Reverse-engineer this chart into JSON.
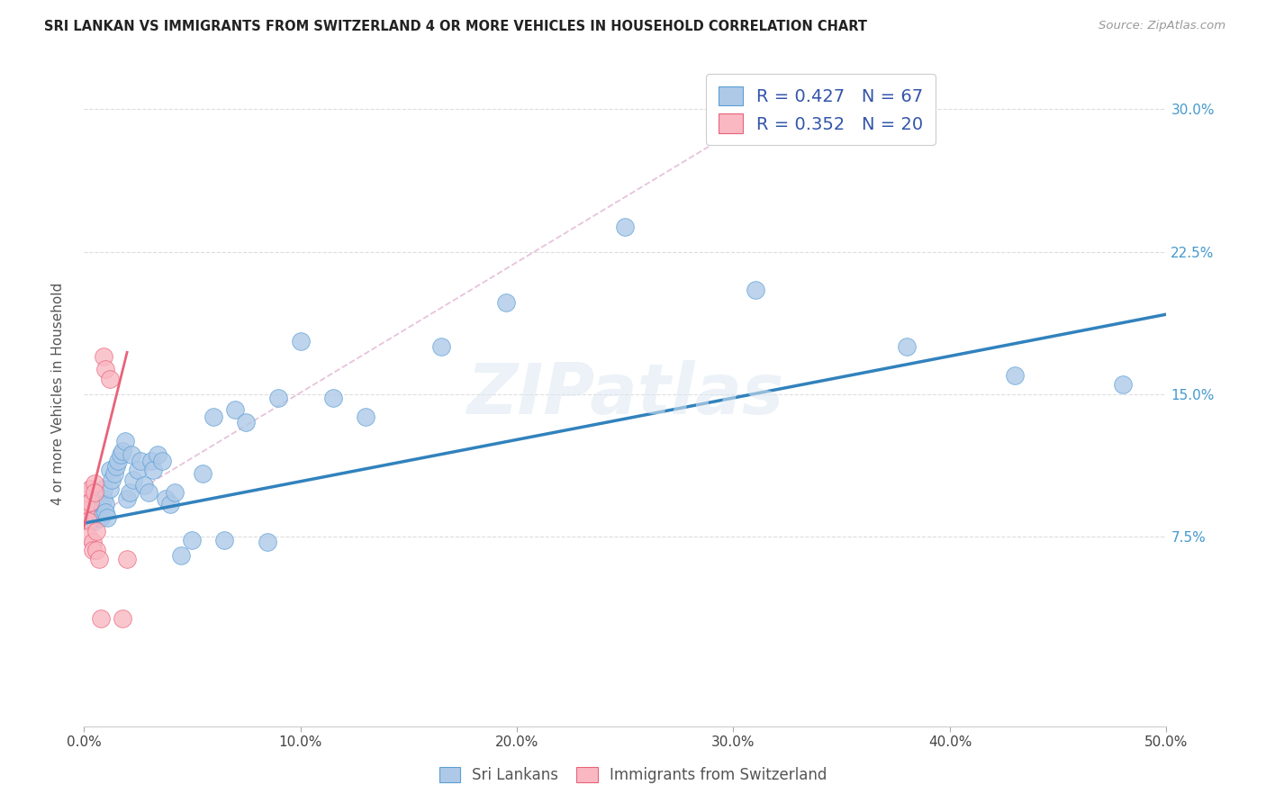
{
  "title": "SRI LANKAN VS IMMIGRANTS FROM SWITZERLAND 4 OR MORE VEHICLES IN HOUSEHOLD CORRELATION CHART",
  "source": "Source: ZipAtlas.com",
  "ylabel": "4 or more Vehicles in Household",
  "xlim": [
    0.0,
    0.5
  ],
  "ylim": [
    -0.025,
    0.325
  ],
  "trendline1_color": "#3182bd",
  "trendline2_color": "#e8637a",
  "sri_lankan_color": "#aec9e8",
  "swiss_imm_color": "#f9b8c2",
  "sri_lankan_edge": "#5a9fd4",
  "swiss_edge": "#e8637a",
  "watermark": "ZIPatlas",
  "background_color": "#ffffff",
  "diag_color": "#ddbbcc",
  "legend1_text": "R = 0.427   N = 67",
  "legend2_text": "R = 0.352   N = 20",
  "legend_label_color": "#3355aa",
  "sri_lankans_x": [
    0.003,
    0.003,
    0.004,
    0.004,
    0.005,
    0.005,
    0.005,
    0.005,
    0.006,
    0.006,
    0.006,
    0.006,
    0.007,
    0.007,
    0.007,
    0.007,
    0.008,
    0.008,
    0.008,
    0.009,
    0.009,
    0.01,
    0.01,
    0.011,
    0.012,
    0.012,
    0.013,
    0.014,
    0.015,
    0.016,
    0.017,
    0.018,
    0.019,
    0.02,
    0.021,
    0.022,
    0.023,
    0.025,
    0.026,
    0.028,
    0.03,
    0.031,
    0.032,
    0.034,
    0.036,
    0.038,
    0.04,
    0.042,
    0.045,
    0.05,
    0.055,
    0.06,
    0.065,
    0.07,
    0.075,
    0.085,
    0.09,
    0.1,
    0.115,
    0.13,
    0.165,
    0.195,
    0.25,
    0.31,
    0.38,
    0.43,
    0.48
  ],
  "sri_lankans_y": [
    0.09,
    0.083,
    0.088,
    0.093,
    0.088,
    0.083,
    0.092,
    0.086,
    0.09,
    0.085,
    0.093,
    0.087,
    0.088,
    0.092,
    0.096,
    0.085,
    0.09,
    0.085,
    0.093,
    0.095,
    0.1,
    0.092,
    0.088,
    0.085,
    0.1,
    0.11,
    0.105,
    0.108,
    0.112,
    0.115,
    0.118,
    0.12,
    0.125,
    0.095,
    0.098,
    0.118,
    0.105,
    0.11,
    0.115,
    0.102,
    0.098,
    0.115,
    0.11,
    0.118,
    0.115,
    0.095,
    0.092,
    0.098,
    0.065,
    0.073,
    0.108,
    0.138,
    0.073,
    0.142,
    0.135,
    0.072,
    0.148,
    0.178,
    0.148,
    0.138,
    0.175,
    0.198,
    0.238,
    0.205,
    0.175,
    0.16,
    0.155
  ],
  "swiss_x": [
    0.001,
    0.001,
    0.001,
    0.002,
    0.002,
    0.003,
    0.003,
    0.004,
    0.004,
    0.005,
    0.005,
    0.006,
    0.006,
    0.007,
    0.008,
    0.009,
    0.01,
    0.012,
    0.018,
    0.02
  ],
  "swiss_y": [
    0.088,
    0.092,
    0.098,
    0.083,
    0.075,
    0.1,
    0.093,
    0.072,
    0.068,
    0.103,
    0.098,
    0.068,
    0.078,
    0.063,
    0.032,
    0.17,
    0.163,
    0.158,
    0.032,
    0.063
  ],
  "blue_trend_x0": 0.0,
  "blue_trend_y0": 0.082,
  "blue_trend_x1": 0.5,
  "blue_trend_y1": 0.192,
  "pink_trend_x0": 0.0,
  "pink_trend_y0": 0.08,
  "pink_trend_x1": 0.02,
  "pink_trend_y1": 0.172
}
